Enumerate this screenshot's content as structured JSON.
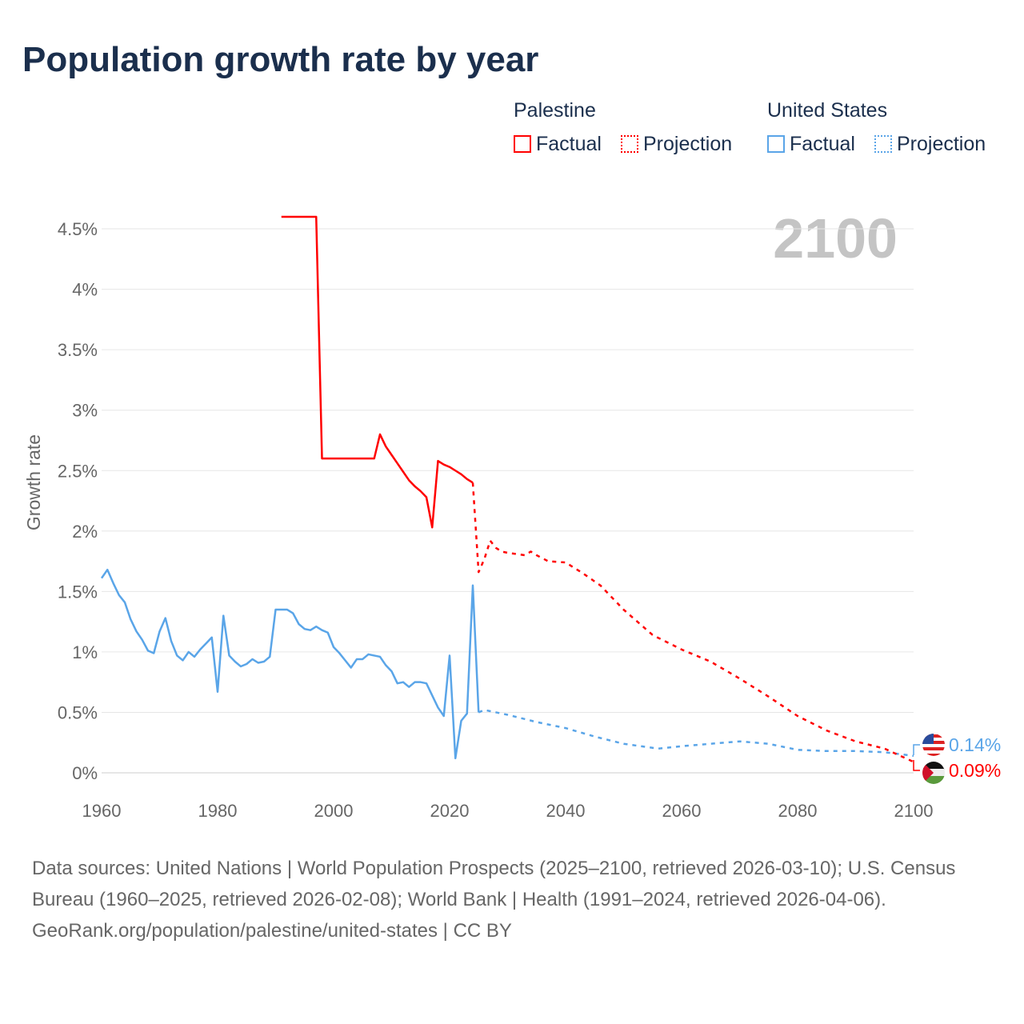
{
  "title": "Population growth rate by year",
  "legend": {
    "groups": [
      {
        "name": "Palestine",
        "color": "#ff0000",
        "factual": "Factual",
        "projection": "Projection"
      },
      {
        "name": "United States",
        "color": "#5aa5e8",
        "factual": "Factual",
        "projection": "Projection"
      }
    ]
  },
  "year_label": "2100",
  "end_labels": {
    "us": "0.14%",
    "ps": "0.09%"
  },
  "footer": {
    "sources": "Data sources: United Nations | World Population Prospects (2025–2100, retrieved 2026-03-10); U.S. Census Bureau (1960–2025, retrieved 2026-02-08); World Bank | Health (1991–2024, retrieved 2026-04-06).",
    "credit": "GeoRank.org/population/palestine/united-states | CC BY"
  },
  "chart_data": {
    "type": "line",
    "title": "Population growth rate by year",
    "xlabel": "",
    "ylabel": "Growth rate",
    "xlim": [
      1960,
      2100
    ],
    "ylim": [
      0,
      4.5
    ],
    "xticks": [
      "1960",
      "1980",
      "2000",
      "2020",
      "2040",
      "2060",
      "2080",
      "2100"
    ],
    "yticks": [
      "0%",
      "0.5%",
      "1%",
      "1.5%",
      "2%",
      "2.5%",
      "3%",
      "3.5%",
      "4%",
      "4.5%"
    ],
    "series": [
      {
        "name": "United States Factual",
        "color": "#5aa5e8",
        "dashed": false,
        "x": [
          1960,
          1961,
          1962,
          1963,
          1964,
          1965,
          1966,
          1967,
          1968,
          1969,
          1970,
          1971,
          1972,
          1973,
          1974,
          1975,
          1976,
          1977,
          1978,
          1979,
          1980,
          1981,
          1982,
          1983,
          1984,
          1985,
          1986,
          1987,
          1988,
          1989,
          1990,
          1991,
          1992,
          1993,
          1994,
          1995,
          1996,
          1997,
          1998,
          1999,
          2000,
          2001,
          2002,
          2003,
          2004,
          2005,
          2006,
          2007,
          2008,
          2009,
          2010,
          2011,
          2012,
          2013,
          2014,
          2015,
          2016,
          2017,
          2018,
          2019,
          2020,
          2021,
          2022,
          2023,
          2024,
          2025
        ],
        "y": [
          1.61,
          1.68,
          1.57,
          1.47,
          1.41,
          1.27,
          1.17,
          1.1,
          1.01,
          0.99,
          1.17,
          1.28,
          1.09,
          0.97,
          0.93,
          1.0,
          0.96,
          1.02,
          1.07,
          1.12,
          0.67,
          1.3,
          0.97,
          0.92,
          0.88,
          0.9,
          0.94,
          0.91,
          0.92,
          0.96,
          1.35,
          1.35,
          1.35,
          1.32,
          1.23,
          1.19,
          1.18,
          1.21,
          1.18,
          1.16,
          1.04,
          0.99,
          0.93,
          0.87,
          0.94,
          0.94,
          0.98,
          0.97,
          0.96,
          0.89,
          0.84,
          0.74,
          0.75,
          0.71,
          0.75,
          0.75,
          0.74,
          0.64,
          0.54,
          0.47,
          0.97,
          0.12,
          0.43,
          0.49,
          1.55,
          0.5
        ]
      },
      {
        "name": "United States Projection",
        "color": "#5aa5e8",
        "dashed": true,
        "x": [
          2025,
          2026,
          2030,
          2035,
          2040,
          2045,
          2050,
          2056,
          2060,
          2065,
          2070,
          2075,
          2080,
          2085,
          2090,
          2095,
          2100
        ],
        "y": [
          0.5,
          0.52,
          0.48,
          0.42,
          0.37,
          0.3,
          0.24,
          0.2,
          0.22,
          0.24,
          0.26,
          0.24,
          0.19,
          0.18,
          0.18,
          0.17,
          0.14
        ]
      },
      {
        "name": "Palestine Factual",
        "color": "#ff0000",
        "dashed": false,
        "x": [
          1991,
          1997,
          1998,
          2007,
          2008,
          2009,
          2010,
          2011,
          2012,
          2013,
          2014,
          2015,
          2016,
          2017,
          2018,
          2019,
          2020,
          2021,
          2022,
          2023,
          2024
        ],
        "y": [
          4.6,
          4.6,
          2.6,
          2.6,
          2.8,
          2.7,
          2.63,
          2.56,
          2.49,
          2.42,
          2.37,
          2.33,
          2.28,
          2.03,
          2.58,
          2.55,
          2.53,
          2.5,
          2.47,
          2.43,
          2.4
        ]
      },
      {
        "name": "Palestine Projection",
        "color": "#ff0000",
        "dashed": true,
        "x": [
          2024,
          2025,
          2026,
          2027,
          2028,
          2029,
          2030,
          2033,
          2034,
          2035,
          2037,
          2040,
          2043,
          2046,
          2050,
          2055,
          2060,
          2065,
          2070,
          2075,
          2080,
          2085,
          2090,
          2095,
          2100
        ],
        "y": [
          2.4,
          1.66,
          1.77,
          1.92,
          1.86,
          1.83,
          1.82,
          1.8,
          1.83,
          1.8,
          1.75,
          1.74,
          1.65,
          1.55,
          1.35,
          1.14,
          1.02,
          0.92,
          0.78,
          0.63,
          0.47,
          0.35,
          0.26,
          0.2,
          0.09
        ]
      }
    ]
  }
}
